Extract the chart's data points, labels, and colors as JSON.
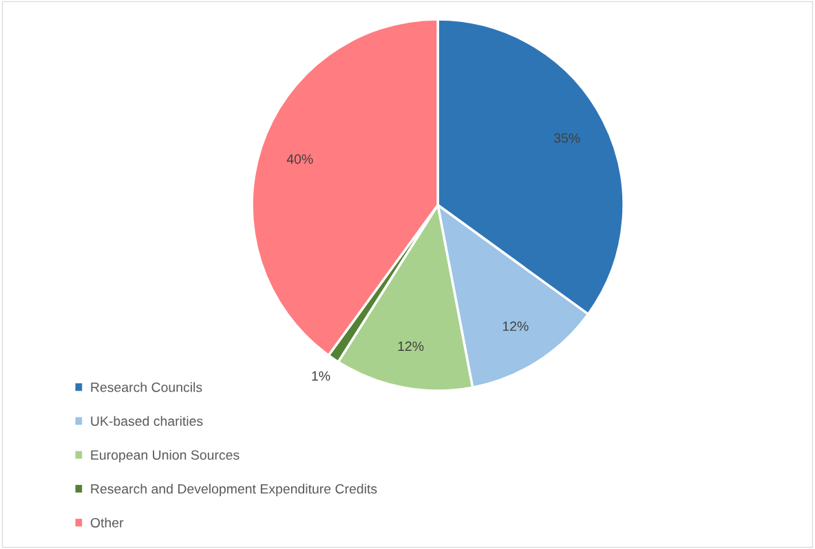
{
  "chart_data": {
    "type": "pie",
    "categories": [
      "Research Councils",
      "UK-based charities",
      "European Union Sources",
      "Research and Development Expenditure Credits",
      "Other"
    ],
    "values": [
      35,
      12,
      12,
      1,
      40
    ],
    "colors": [
      "#2e75b6",
      "#9dc3e6",
      "#a9d18e",
      "#548235",
      "#ff7c80"
    ],
    "value_labels": [
      "35%",
      "12%",
      "12%",
      "1%",
      "40%"
    ],
    "legend": "bottom left"
  }
}
